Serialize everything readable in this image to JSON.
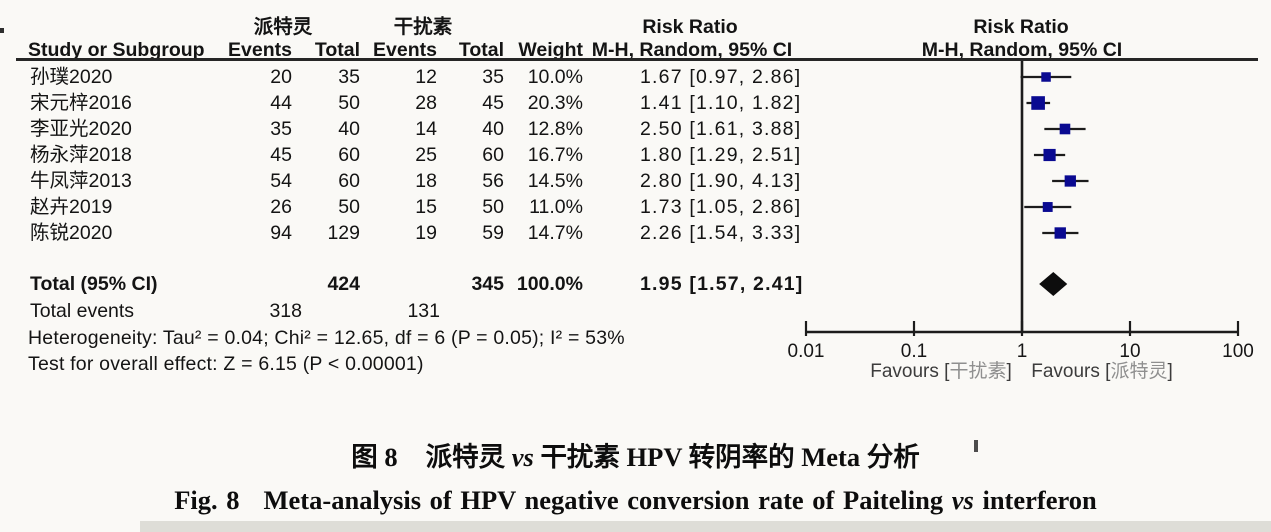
{
  "headers": {
    "study": "Study or Subgroup",
    "events": "Events",
    "total": "Total",
    "weight": "Weight",
    "risk_ratio": "Risk Ratio",
    "method": "M-H, Random, 95% CI"
  },
  "chart_data": {
    "type": "forest",
    "effect_measure": "Risk Ratio",
    "method": "M-H, Random, 95% CI",
    "group_labels": [
      "派特灵",
      "干扰素"
    ],
    "studies": [
      {
        "name": "孙璞2020",
        "events1": 20,
        "total1": 35,
        "events2": 12,
        "total2": 35,
        "weight": "10.0%",
        "weight_value": 10.0,
        "rr": 1.67,
        "ci_low": 0.97,
        "ci_high": 2.86,
        "ci_text": "1.67 [0.97, 2.86]"
      },
      {
        "name": "宋元梓2016",
        "events1": 44,
        "total1": 50,
        "events2": 28,
        "total2": 45,
        "weight": "20.3%",
        "weight_value": 20.3,
        "rr": 1.41,
        "ci_low": 1.1,
        "ci_high": 1.82,
        "ci_text": "1.41 [1.10, 1.82]"
      },
      {
        "name": "李亚光2020",
        "events1": 35,
        "total1": 40,
        "events2": 14,
        "total2": 40,
        "weight": "12.8%",
        "weight_value": 12.8,
        "rr": 2.5,
        "ci_low": 1.61,
        "ci_high": 3.88,
        "ci_text": "2.50 [1.61, 3.88]"
      },
      {
        "name": "杨永萍2018",
        "events1": 45,
        "total1": 60,
        "events2": 25,
        "total2": 60,
        "weight": "16.7%",
        "weight_value": 16.7,
        "rr": 1.8,
        "ci_low": 1.29,
        "ci_high": 2.51,
        "ci_text": "1.80 [1.29, 2.51]"
      },
      {
        "name": "牛凤萍2013",
        "events1": 54,
        "total1": 60,
        "events2": 18,
        "total2": 56,
        "weight": "14.5%",
        "weight_value": 14.5,
        "rr": 2.8,
        "ci_low": 1.9,
        "ci_high": 4.13,
        "ci_text": "2.80 [1.90, 4.13]"
      },
      {
        "name": "赵卉2019",
        "events1": 26,
        "total1": 50,
        "events2": 15,
        "total2": 50,
        "weight": "11.0%",
        "weight_value": 11.0,
        "rr": 1.73,
        "ci_low": 1.05,
        "ci_high": 2.86,
        "ci_text": "1.73 [1.05, 2.86]"
      },
      {
        "name": "陈锐2020",
        "events1": 94,
        "total1": 129,
        "events2": 19,
        "total2": 59,
        "weight": "14.7%",
        "weight_value": 14.7,
        "rr": 2.26,
        "ci_low": 1.54,
        "ci_high": 3.33,
        "ci_text": "2.26 [1.54, 3.33]"
      }
    ],
    "total": {
      "label": "Total (95% CI)",
      "total1": 424,
      "total2": 345,
      "weight": "100.0%",
      "rr": 1.95,
      "ci_low": 1.57,
      "ci_high": 2.41,
      "ci_text": "1.95 [1.57, 2.41]"
    },
    "total_events": {
      "label": "Total events",
      "events1": 318,
      "events2": 131
    },
    "heterogeneity": "Heterogeneity: Tau² = 0.04; Chi² = 12.65, df = 6 (P = 0.05); I² = 53%",
    "overall_effect": "Test for overall effect: Z = 6.15 (P < 0.00001)",
    "axis": {
      "scale": "log",
      "ticks": [
        0.01,
        0.1,
        1,
        10,
        100
      ],
      "tick_labels": [
        "0.01",
        "0.1",
        "1",
        "10",
        "100"
      ]
    },
    "favours_left": {
      "prefix": "Favours [",
      "group": "干扰素",
      "suffix": "]"
    },
    "favours_right": {
      "prefix": "Favours [",
      "group": "派特灵",
      "suffix": "]"
    },
    "colors": {
      "square": "#0a0a91",
      "diamond": "#0d0d0d",
      "line": "#1c1c1c"
    }
  },
  "caption": {
    "zh": {
      "fig": "图 8",
      "pre": "派特灵 ",
      "vs": "vs",
      "post": " 干扰素 HPV 转阴率的 Meta 分析"
    },
    "en": {
      "fig": "Fig. 8",
      "pre": "Meta-analysis of HPV negative conversion rate of Paiteling ",
      "vs": "vs",
      "post": " interferon"
    }
  }
}
